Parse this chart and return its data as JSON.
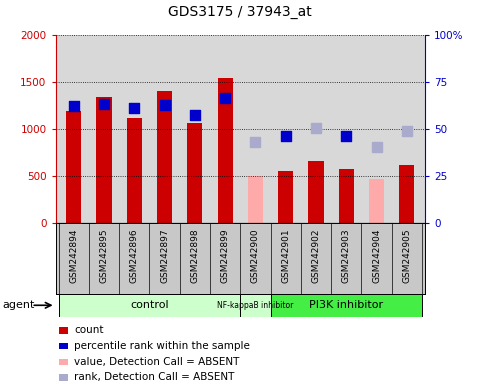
{
  "title": "GDS3175 / 37943_at",
  "samples": [
    "GSM242894",
    "GSM242895",
    "GSM242896",
    "GSM242897",
    "GSM242898",
    "GSM242899",
    "GSM242900",
    "GSM242901",
    "GSM242902",
    "GSM242903",
    "GSM242904",
    "GSM242905"
  ],
  "bar_values": [
    1190,
    1340,
    1110,
    1400,
    1060,
    1540,
    null,
    555,
    660,
    570,
    null,
    615
  ],
  "bar_absent_values": [
    null,
    null,
    null,
    null,
    null,
    null,
    500,
    null,
    null,
    null,
    460,
    null
  ],
  "rank_values": [
    1240,
    1260,
    1220,
    1250,
    1140,
    1325,
    null,
    920,
    null,
    920,
    null,
    null
  ],
  "rank_absent_values": [
    null,
    null,
    null,
    null,
    null,
    null,
    860,
    null,
    1010,
    null,
    800,
    970
  ],
  "bar_color_present": "#cc0000",
  "bar_color_absent": "#ffaaaa",
  "rank_color_present": "#0000cc",
  "rank_color_absent": "#aaaacc",
  "plot_bg_color": "#d8d8d8",
  "ylim_left": [
    0,
    2000
  ],
  "ylim_right": [
    0,
    100
  ],
  "yticks_left": [
    0,
    500,
    1000,
    1500,
    2000
  ],
  "yticks_right": [
    0,
    25,
    50,
    75,
    100
  ],
  "ytick_labels_right": [
    "0",
    "25",
    "50",
    "75",
    "100%"
  ],
  "left_tick_color": "#cc0000",
  "right_tick_color": "#0000cc",
  "bar_width": 0.5,
  "rank_marker_size": 55,
  "group_control_color": "#ccffcc",
  "group_nfkb_color": "#ccffcc",
  "group_pi3k_color": "#44ee44",
  "legend_items": [
    {
      "color": "#cc0000",
      "label": "count"
    },
    {
      "color": "#0000cc",
      "label": "percentile rank within the sample"
    },
    {
      "color": "#ffaaaa",
      "label": "value, Detection Call = ABSENT"
    },
    {
      "color": "#aaaacc",
      "label": "rank, Detection Call = ABSENT"
    }
  ]
}
